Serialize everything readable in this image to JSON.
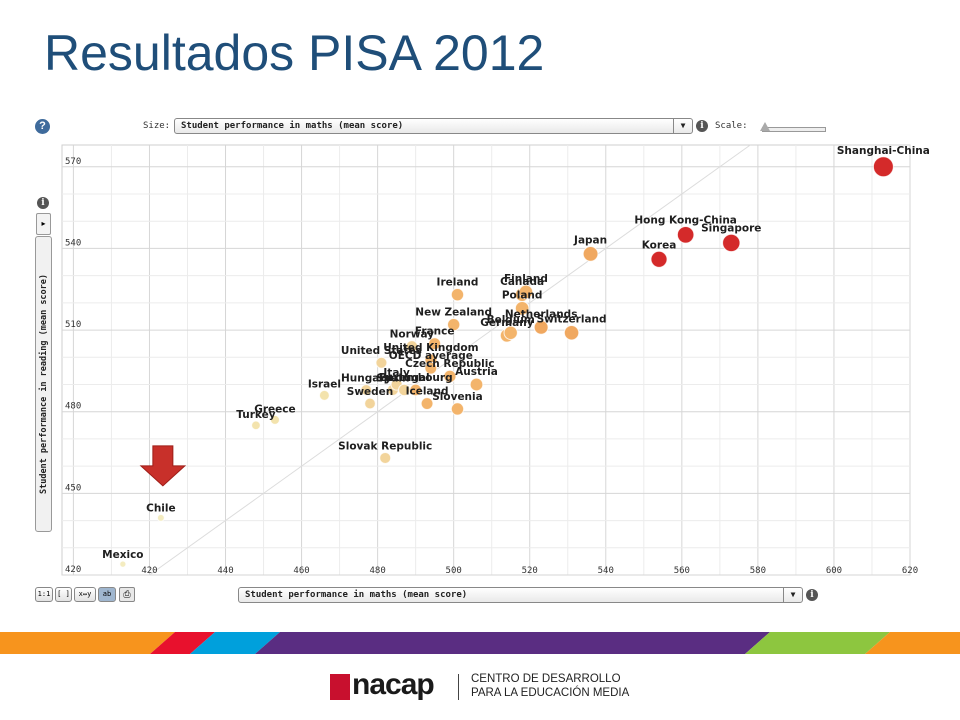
{
  "slide": {
    "title": "Resultados PISA 2012"
  },
  "controls": {
    "help": "?",
    "info": "i",
    "size_label": "Size:",
    "size_select": "Student performance in maths (mean score)",
    "scale_label": "Scale:",
    "play": "▸",
    "x_select": "Student performance in maths (mean score)",
    "y_select": "Student performance in reading (mean score)",
    "tools": [
      "1:1",
      "[ ]",
      "x↔y",
      "ab"
    ]
  },
  "footer": {
    "logo_word": "nacap",
    "logo_sub_line1": "CENTRO DE DESARROLLO",
    "logo_sub_line2": "PARA LA EDUCACIÓN MEDIA",
    "stripe_colors": [
      "#f7941d",
      "#e8112d",
      "#00a0dc",
      "#5a2d82",
      "#8dc63f",
      "#f7941d"
    ]
  },
  "chart_data": {
    "type": "scatter",
    "title": "",
    "xlabel": "Student performance in maths (mean score)",
    "ylabel": "Student performance in reading (mean score)",
    "xlim": [
      397,
      620
    ],
    "ylim": [
      420,
      578
    ],
    "x_ticks": [
      420,
      440,
      460,
      480,
      500,
      520,
      540,
      560,
      580,
      600,
      620
    ],
    "y_ticks": [
      420,
      450,
      480,
      510,
      540,
      570
    ],
    "grid": true,
    "reference_line": "diagonal",
    "points": [
      {
        "label": "Shanghai-China",
        "x": 613,
        "y": 570
      },
      {
        "label": "Singapore",
        "x": 573,
        "y": 542
      },
      {
        "label": "Hong Kong-China",
        "x": 561,
        "y": 545
      },
      {
        "label": "Korea",
        "x": 554,
        "y": 536
      },
      {
        "label": "Japan",
        "x": 536,
        "y": 538
      },
      {
        "label": "Switzerland",
        "x": 531,
        "y": 509
      },
      {
        "label": "Netherlands",
        "x": 523,
        "y": 511
      },
      {
        "label": "Finland",
        "x": 519,
        "y": 524
      },
      {
        "label": "Canada",
        "x": 518,
        "y": 523
      },
      {
        "label": "Poland",
        "x": 518,
        "y": 518
      },
      {
        "label": "Belgium",
        "x": 515,
        "y": 509
      },
      {
        "label": "Germany",
        "x": 514,
        "y": 508
      },
      {
        "label": "Ireland",
        "x": 501,
        "y": 523
      },
      {
        "label": "New Zealand",
        "x": 500,
        "y": 512
      },
      {
        "label": "France",
        "x": 495,
        "y": 505
      },
      {
        "label": "Norway",
        "x": 489,
        "y": 504
      },
      {
        "label": "United Kingdom",
        "x": 494,
        "y": 499
      },
      {
        "label": "Czech Republic",
        "x": 499,
        "y": 493
      },
      {
        "label": "OECD average",
        "x": 494,
        "y": 496
      },
      {
        "label": "Austria",
        "x": 506,
        "y": 490
      },
      {
        "label": "Luxembourg",
        "x": 490,
        "y": 488
      },
      {
        "label": "Iceland",
        "x": 493,
        "y": 483
      },
      {
        "label": "Slovenia",
        "x": 501,
        "y": 481
      },
      {
        "label": "Portugal",
        "x": 487,
        "y": 488
      },
      {
        "label": "Spain",
        "x": 484,
        "y": 488
      },
      {
        "label": "Italy",
        "x": 485,
        "y": 490
      },
      {
        "label": "United States",
        "x": 481,
        "y": 498
      },
      {
        "label": "Hungary",
        "x": 477,
        "y": 488
      },
      {
        "label": "Sweden",
        "x": 478,
        "y": 483
      },
      {
        "label": "Israel",
        "x": 466,
        "y": 486
      },
      {
        "label": "Slovak Republic",
        "x": 482,
        "y": 463
      },
      {
        "label": "Greece",
        "x": 453,
        "y": 477
      },
      {
        "label": "Turkey",
        "x": 448,
        "y": 475
      },
      {
        "label": "Chile",
        "x": 423,
        "y": 441
      },
      {
        "label": "Mexico",
        "x": 413,
        "y": 424
      }
    ]
  }
}
